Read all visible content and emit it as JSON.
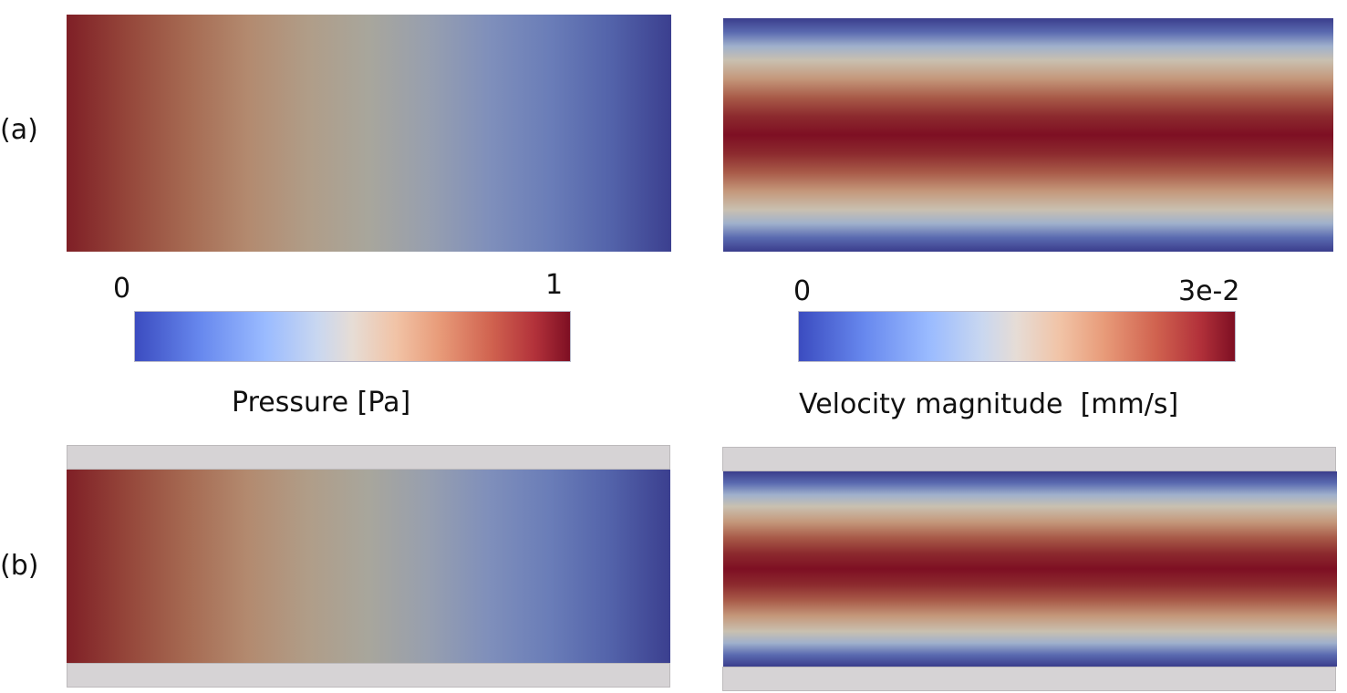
{
  "rows": [
    {
      "label": "(a)"
    },
    {
      "label": "(b)"
    }
  ],
  "colorbars": {
    "pressure": {
      "min_label": "0",
      "max_label": "1",
      "title": "Pressure [Pa]"
    },
    "velocity": {
      "min_label": "0",
      "max_label": "3e-2",
      "title": "Velocity magnitude  [mm/s]"
    }
  },
  "colors": {
    "colormap_low": "#3b4cc0",
    "colormap_mid": "#dddddd",
    "colormap_high": "#7e0f23",
    "wall": "#d6d3d5"
  }
}
